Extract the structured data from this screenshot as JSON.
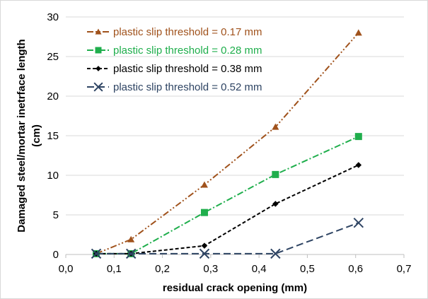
{
  "chart_data": {
    "type": "line",
    "xlabel": "residual crack opening (mm)",
    "ylabel_lines": [
      "Damaged steel/mortar inetrface length",
      "(cm)"
    ],
    "xlim": [
      0,
      0.7
    ],
    "ylim": [
      0,
      30
    ],
    "x_ticks": [
      "0,0",
      "0,1",
      "0,2",
      "0,3",
      "0,4",
      "0,5",
      "0,6",
      "0,7"
    ],
    "y_ticks": [
      "0",
      "5",
      "10",
      "15",
      "20",
      "25",
      "30"
    ],
    "grid": "horizontal",
    "legend_position": "top-left",
    "series": [
      {
        "name": "plastic slip threshold = 0.17 mm",
        "color": "#a0521c",
        "marker": "triangle",
        "dash": "dash-dot-dot",
        "x": [
          0.063,
          0.135,
          0.287,
          0.434,
          0.606
        ],
        "y": [
          0.1,
          1.9,
          8.8,
          16.1,
          28.0
        ]
      },
      {
        "name": "plastic slip threshold = 0.28 mm",
        "color": "#1fae4c",
        "marker": "square",
        "dash": "dash-dot",
        "x": [
          0.063,
          0.135,
          0.287,
          0.434,
          0.606
        ],
        "y": [
          0.1,
          0.1,
          5.3,
          10.1,
          14.9
        ]
      },
      {
        "name": "plastic slip threshold = 0.38 mm",
        "color": "#000000",
        "marker": "diamond",
        "dash": "dash",
        "x": [
          0.063,
          0.135,
          0.287,
          0.434,
          0.606
        ],
        "y": [
          0.1,
          0.1,
          1.1,
          6.4,
          11.3
        ]
      },
      {
        "name": "plastic slip threshold = 0.52 mm",
        "color": "#2e4463",
        "marker": "x",
        "dash": "long-dash",
        "x": [
          0.063,
          0.135,
          0.287,
          0.434,
          0.606
        ],
        "y": [
          0.1,
          0.1,
          0.1,
          0.1,
          4.0
        ]
      }
    ]
  }
}
